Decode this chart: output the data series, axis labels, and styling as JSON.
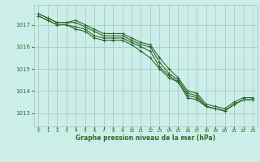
{
  "title": "Graphe pression niveau de la mer (hPa)",
  "background_color": "#cceee8",
  "grid_color": "#aacccc",
  "line_color": "#2d6a2d",
  "marker_color": "#2d6a2d",
  "xlim": [
    -0.5,
    23.5
  ],
  "ylim": [
    1012.4,
    1017.9
  ],
  "yticks": [
    1013,
    1014,
    1015,
    1016,
    1017
  ],
  "xticks": [
    0,
    1,
    2,
    3,
    4,
    5,
    6,
    7,
    8,
    9,
    10,
    11,
    12,
    13,
    14,
    15,
    16,
    17,
    18,
    19,
    20,
    21,
    22,
    23
  ],
  "series": [
    [
      1017.4,
      1017.2,
      1017.0,
      1017.0,
      1016.9,
      1016.8,
      1016.5,
      1016.4,
      1016.4,
      1016.4,
      1016.2,
      1016.0,
      1015.8,
      1015.1,
      1014.7,
      1014.4,
      1013.8,
      1013.7,
      1013.3,
      1013.2,
      1013.1,
      1013.4,
      1013.6,
      1013.6
    ],
    [
      1017.4,
      1017.2,
      1017.0,
      1017.0,
      1016.8,
      1016.7,
      1016.4,
      1016.3,
      1016.3,
      1016.3,
      1016.1,
      1015.8,
      1015.5,
      1015.0,
      1014.6,
      1014.4,
      1013.7,
      1013.6,
      1013.3,
      1013.2,
      1013.1,
      1013.4,
      1013.6,
      1013.6
    ],
    [
      1017.5,
      1017.3,
      1017.1,
      1017.1,
      1017.1,
      1016.9,
      1016.7,
      1016.5,
      1016.5,
      1016.5,
      1016.3,
      1016.1,
      1016.0,
      1015.3,
      1014.8,
      1014.5,
      1013.9,
      1013.8,
      1013.3,
      1013.2,
      1013.1,
      1013.4,
      1013.6,
      1013.6
    ],
    [
      1017.5,
      1017.3,
      1017.1,
      1017.1,
      1017.2,
      1017.0,
      1016.8,
      1016.6,
      1016.6,
      1016.6,
      1016.4,
      1016.2,
      1016.1,
      1015.5,
      1015.0,
      1014.6,
      1014.0,
      1013.9,
      1013.4,
      1013.3,
      1013.2,
      1013.5,
      1013.7,
      1013.7
    ]
  ],
  "figsize": [
    3.2,
    2.0
  ],
  "dpi": 100
}
